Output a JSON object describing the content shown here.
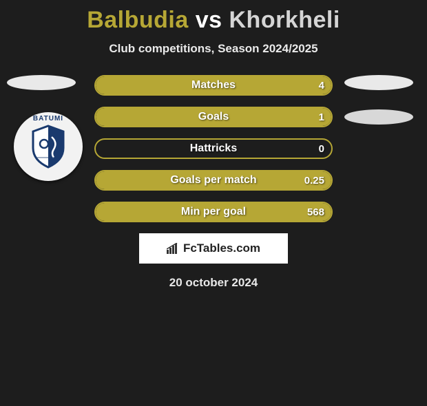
{
  "title": {
    "team1": "Balbudia",
    "team2": "Khorkheli",
    "separator": "vs",
    "team1_color": "#b6a735",
    "team2_color": "#d5d5d5"
  },
  "subtitle": "Club competitions, Season 2024/2025",
  "badge": {
    "top_text": "BATUMI"
  },
  "stats": {
    "border_color": "#b6a735",
    "fill_color": "#b6a735",
    "rows": [
      {
        "label": "Matches",
        "value": "4",
        "fill_pct": 100
      },
      {
        "label": "Goals",
        "value": "1",
        "fill_pct": 100
      },
      {
        "label": "Hattricks",
        "value": "0",
        "fill_pct": 0
      },
      {
        "label": "Goals per match",
        "value": "0.25",
        "fill_pct": 100
      },
      {
        "label": "Min per goal",
        "value": "568",
        "fill_pct": 100
      }
    ]
  },
  "brand": "FcTables.com",
  "date": "20 october 2024",
  "background_color": "#1d1d1d"
}
